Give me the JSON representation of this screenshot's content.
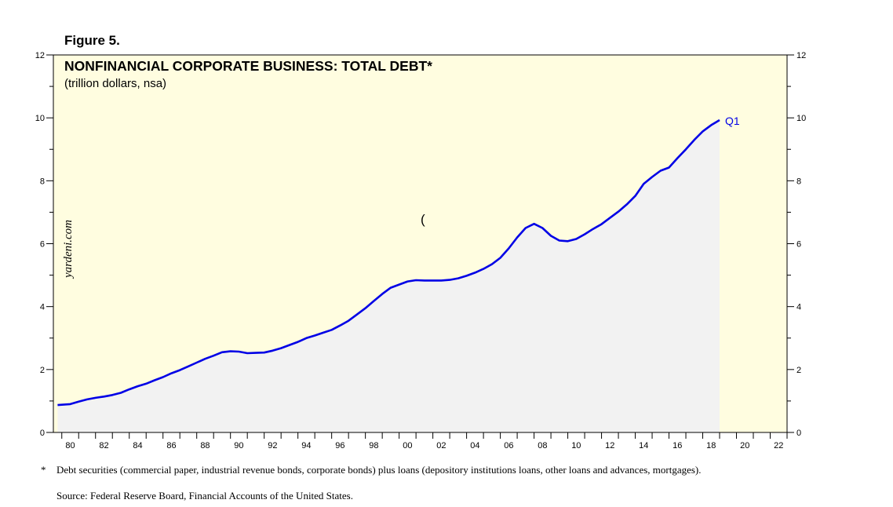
{
  "figure_label": "Figure 5.",
  "watermark": "yardeni.com",
  "stray_mark": "(",
  "footnote": {
    "marker": "*",
    "text": "Debt securities (commercial paper, industrial revenue bonds, corporate bonds) plus loans (depository institutions loans, other loans and advances, mortgages)."
  },
  "source": "Source: Federal Reserve Board, Financial Accounts of the United States.",
  "colors": {
    "plot_background": "#fffde0",
    "area_fill": "#f2f2f2",
    "line": "#0000e6",
    "end_label": "#0000e6"
  },
  "chart_data": {
    "type": "line",
    "title": "NONFINANCIAL CORPORATE BUSINESS: TOTAL DEBT*",
    "subtitle": "(trillion dollars, nsa)",
    "end_label": "Q1",
    "xlim": [
      1979.5,
      2023.0
    ],
    "ylim": [
      0,
      12
    ],
    "y_ticks": [
      0,
      2,
      4,
      6,
      8,
      10,
      12
    ],
    "y_tick_labels": [
      "0",
      "2",
      "4",
      "6",
      "8",
      "10",
      "12"
    ],
    "x_ticks": [
      1980,
      1982,
      1984,
      1986,
      1988,
      1990,
      1992,
      1994,
      1996,
      1998,
      2000,
      2002,
      2004,
      2006,
      2008,
      2010,
      2012,
      2014,
      2016,
      2018,
      2020,
      2022
    ],
    "x_tick_labels": [
      "80",
      "82",
      "84",
      "86",
      "88",
      "90",
      "92",
      "94",
      "96",
      "98",
      "00",
      "02",
      "04",
      "06",
      "08",
      "10",
      "12",
      "14",
      "16",
      "18",
      "20",
      "22"
    ],
    "grid": false,
    "y_axis_both_sides": true,
    "area_under_line": true,
    "series": [
      {
        "x": [
          1979.75,
          1980.5,
          1981.0,
          1981.5,
          1982.0,
          1982.5,
          1983.0,
          1983.5,
          1984.0,
          1984.5,
          1985.0,
          1985.5,
          1986.0,
          1986.5,
          1987.0,
          1987.5,
          1988.0,
          1988.5,
          1989.0,
          1989.5,
          1990.0,
          1990.5,
          1991.0,
          1991.5,
          1992.0,
          1992.5,
          1993.0,
          1993.5,
          1994.0,
          1994.5,
          1995.0,
          1995.5,
          1996.0,
          1996.5,
          1997.0,
          1997.5,
          1998.0,
          1998.5,
          1999.0,
          1999.5,
          2000.0,
          2000.5,
          2001.0,
          2001.5,
          2002.0,
          2002.5,
          2003.0,
          2003.5,
          2004.0,
          2004.5,
          2005.0,
          2005.5,
          2006.0,
          2006.5,
          2007.0,
          2007.5,
          2008.0,
          2008.5,
          2009.0,
          2009.5,
          2010.0,
          2010.5,
          2011.0,
          2011.5,
          2012.0,
          2012.5,
          2013.0,
          2013.5,
          2014.0,
          2014.5,
          2015.0,
          2015.5,
          2016.0,
          2016.5,
          2017.0,
          2017.5,
          2018.0,
          2018.25,
          2018.5,
          2018.75,
          2019.0
        ],
        "y": [
          0.87,
          0.9,
          0.98,
          1.05,
          1.1,
          1.14,
          1.19,
          1.26,
          1.37,
          1.47,
          1.55,
          1.66,
          1.76,
          1.88,
          1.98,
          2.1,
          2.22,
          2.34,
          2.44,
          2.55,
          2.58,
          2.57,
          2.52,
          2.53,
          2.54,
          2.6,
          2.68,
          2.78,
          2.88,
          3.0,
          3.08,
          3.17,
          3.26,
          3.4,
          3.55,
          3.75,
          3.95,
          4.18,
          4.4,
          4.6,
          4.7,
          4.8,
          4.84,
          4.83,
          4.83,
          4.83,
          4.85,
          4.9,
          4.98,
          5.08,
          5.2,
          5.35,
          5.55,
          5.85,
          6.2,
          6.5,
          6.63,
          6.5,
          6.25,
          6.1,
          6.08,
          6.15,
          6.3,
          6.47,
          6.62,
          6.82,
          7.02,
          7.25,
          7.52,
          7.9,
          8.12,
          8.32,
          8.42,
          8.72,
          9.0,
          9.3,
          9.57,
          9.67,
          9.77,
          9.85,
          9.93
        ]
      }
    ]
  }
}
